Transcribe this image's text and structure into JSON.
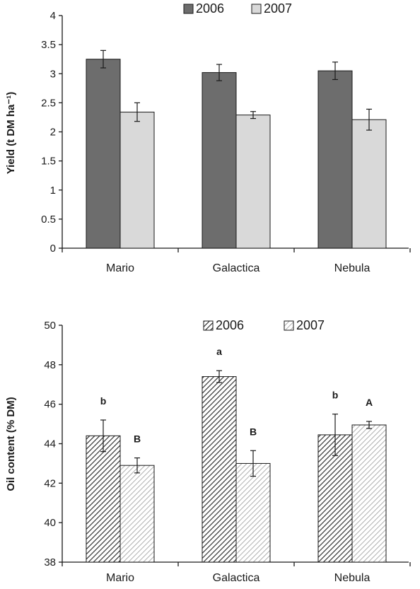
{
  "chart_data": [
    {
      "type": "bar",
      "categories": [
        "Mario",
        "Galactica",
        "Nebula"
      ],
      "series": [
        {
          "name": "2006",
          "values": [
            3.25,
            3.02,
            3.05
          ],
          "errors": [
            0.15,
            0.14,
            0.15
          ],
          "color": "#6d6d6d",
          "pattern": "solid"
        },
        {
          "name": "2007",
          "values": [
            2.34,
            2.29,
            2.21
          ],
          "errors": [
            0.16,
            0.06,
            0.18
          ],
          "color": "#d9d9d9",
          "pattern": "solid"
        }
      ],
      "ylabel": "Yield (t DM ha⁻¹)",
      "ylim": [
        0,
        4
      ],
      "yticks": [
        "0",
        "0.5",
        "1",
        "1.5",
        "2",
        "2.5",
        "3",
        "3.5",
        "4"
      ],
      "legend_position": "top-center",
      "grid": false
    },
    {
      "type": "bar",
      "categories": [
        "Mario",
        "Galactica",
        "Nebula"
      ],
      "series": [
        {
          "name": "2006",
          "values": [
            44.4,
            47.4,
            44.45
          ],
          "errors": [
            0.8,
            0.3,
            1.05
          ],
          "color": "#6d6d6d",
          "pattern": "dark-hatch",
          "labels": [
            "b",
            "a",
            "b"
          ]
        },
        {
          "name": "2007",
          "values": [
            42.9,
            43.0,
            44.95
          ],
          "errors": [
            0.38,
            0.65,
            0.18
          ],
          "color": "#cfcfcf",
          "pattern": "light-hatch",
          "labels": [
            "B",
            "B",
            "A"
          ]
        }
      ],
      "ylabel": "Oil content (% DM)",
      "ylim": [
        38,
        50
      ],
      "yticks": [
        "38",
        "40",
        "42",
        "44",
        "46",
        "48",
        "50"
      ],
      "legend_position": "top-center",
      "grid": false
    }
  ]
}
